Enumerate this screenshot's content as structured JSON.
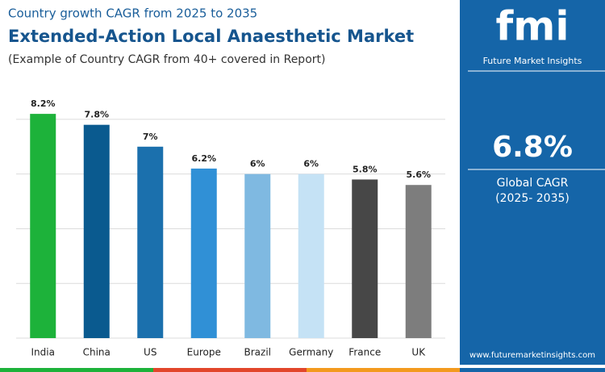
{
  "chart_data": {
    "type": "bar",
    "subtitle": "Country growth CAGR from 2025 to 2035",
    "title": "Extended-Action Local Anaesthetic Market",
    "note": "(Example of Country CAGR from 40+ covered in Report)",
    "categories": [
      "India",
      "China",
      "US",
      "Europe",
      "Brazil",
      "Germany",
      "France",
      "UK"
    ],
    "values": [
      8.2,
      7.8,
      7,
      6.2,
      6,
      6,
      5.8,
      5.6
    ],
    "value_labels": [
      "8.2%",
      "7.8%",
      "7%",
      "6.2%",
      "6%",
      "6%",
      "5.8%",
      "5.6%"
    ],
    "colors": [
      "#1db23a",
      "#0a5a8f",
      "#1b70ad",
      "#3090d6",
      "#7fb9e1",
      "#c5e2f5",
      "#474747",
      "#7d7d7d"
    ],
    "ylim": [
      0,
      9
    ],
    "yticks": [
      0,
      2,
      4,
      6,
      8
    ],
    "grid": true
  },
  "sidebar": {
    "logo": "fmi",
    "brand": "Future Market Insights",
    "value": "6.8%",
    "label": "Global CAGR",
    "period": "(2025- 2035)",
    "website": "www.futuremarketinsights.com"
  }
}
